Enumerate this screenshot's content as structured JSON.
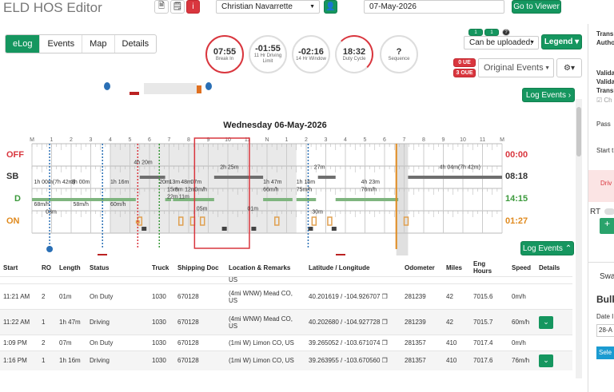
{
  "app": {
    "title": "ELD HOS Editor"
  },
  "header": {
    "driver": "Christian Navarrette",
    "date": "07-May-2026",
    "go_viewer": "Go to Viewer"
  },
  "tabs": [
    {
      "label": "eLog",
      "active": true
    },
    {
      "label": "Events",
      "active": false
    },
    {
      "label": "Map",
      "active": false
    },
    {
      "label": "Details",
      "active": false
    }
  ],
  "gauges": [
    {
      "value": "07:55",
      "label": "Break In"
    },
    {
      "value": "-01:55",
      "label": "11 Hr Driving Limit"
    },
    {
      "value": "-02:16",
      "label": "14 Hr Window"
    },
    {
      "value": "18:32",
      "label": "Duty Cycle"
    },
    {
      "value": "?",
      "label": "Sequence"
    }
  ],
  "upload": {
    "badge1": "1",
    "badge2": "1",
    "badge3": "?",
    "select": "Can be uploaded:",
    "legend": "Legend"
  },
  "ue": {
    "ue": "0 UE",
    "oue": "3 OUE"
  },
  "events_select": "Original Events",
  "log_events": "Log Events",
  "chart_data": {
    "type": "table",
    "title": "Wednesday 06-May-2026",
    "hour_labels": [
      "M",
      "1",
      "2",
      "3",
      "4",
      "5",
      "6",
      "7",
      "8",
      "9",
      "10",
      "11",
      "N",
      "1",
      "2",
      "3",
      "4",
      "5",
      "6",
      "7",
      "8",
      "9",
      "10",
      "11",
      "M"
    ],
    "rows": [
      {
        "label": "OFF",
        "total": "00:00",
        "color": "#d9363e"
      },
      {
        "label": "SB",
        "total": "08:18",
        "color": "#333333"
      },
      {
        "label": "D",
        "total": "14:15",
        "color": "#3c9a3c"
      },
      {
        "label": "ON",
        "total": "01:27",
        "color": "#e08a1e"
      }
    ],
    "annotations": [
      "1h 00m(7h 42m)",
      "3h 00m",
      "68m/h",
      "58m/h",
      "1h 16m",
      "60m/h",
      "4h 20m",
      "20m",
      "13m",
      "48m",
      "07m",
      "2h 25m",
      "15m",
      "8m",
      "12m",
      "0m/h",
      "22m",
      "11m",
      "05m",
      "03m",
      "1h 47m",
      "66m/h",
      "1h 16m",
      "75m/h",
      "01m",
      "27m",
      "4h 23m",
      "76m/h",
      "30m",
      "4h 04m(7h 42m)"
    ]
  },
  "table": {
    "headers": [
      "Start",
      "RO",
      "Length",
      "Status",
      "Truck",
      "Shipping Doc",
      "Location & Remarks",
      "Latitude / Longitude",
      "Odometer",
      "Miles",
      "Eng Hours",
      "Speed",
      "Details"
    ],
    "rows": [
      {
        "start": "11:21 AM",
        "ro": "2",
        "length": "01m",
        "status": "On Duty",
        "truck": "1030",
        "doc": "670128",
        "location": "(4mi WNW) Mead CO, US",
        "latlng": "40.201619 / -104.926707",
        "odometer": "281239",
        "miles": "42",
        "eng": "7015.6",
        "speed": "0m/h",
        "expand": false
      },
      {
        "start": "11:22 AM",
        "ro": "1",
        "length": "1h 47m",
        "status": "Driving",
        "truck": "1030",
        "doc": "670128",
        "location": "(4mi WNW) Mead CO, US",
        "latlng": "40.202680 / -104.927728",
        "odometer": "281239",
        "miles": "42",
        "eng": "7015.7",
        "speed": "60m/h",
        "expand": true
      },
      {
        "start": "1:09 PM",
        "ro": "2",
        "length": "07m",
        "status": "On Duty",
        "truck": "1030",
        "doc": "670128",
        "location": "(1mi W) Limon CO, US",
        "latlng": "39.265052 / -103.671074",
        "odometer": "281357",
        "miles": "410",
        "eng": "7017.4",
        "speed": "0m/h",
        "expand": false
      },
      {
        "start": "1:16 PM",
        "ro": "1",
        "length": "1h 16m",
        "status": "Driving",
        "truck": "1030",
        "doc": "670128",
        "location": "(1mi W) Limon CO, US",
        "latlng": "39.263955 / -103.670560",
        "odometer": "281357",
        "miles": "410",
        "eng": "7017.6",
        "speed": "76m/h",
        "expand": true
      }
    ],
    "prev_row_location": "US"
  },
  "right_panel": {
    "t1": "Trans",
    "t2": "Autho",
    "v1": "Valida",
    "v2": "Valida",
    "v3": "Transi",
    "ch": "Ch",
    "pass": "Pass",
    "start": "Start t",
    "driv": "Driv",
    "rt": "RT",
    "swa": "Swa",
    "bulk": "Bulk",
    "date": "Date I",
    "dateval": "28-A",
    "sele": "Sele"
  }
}
